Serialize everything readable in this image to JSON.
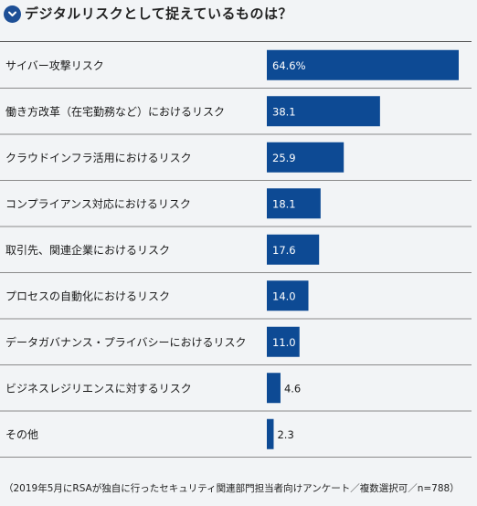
{
  "header": {
    "title": "デジタルリスクとして捉えているものは？",
    "icon": "chevron-down-icon"
  },
  "chart_data": {
    "type": "bar",
    "orientation": "horizontal",
    "title": "デジタルリスクとして捉えているものは？",
    "categories": [
      "サイバー攻撃リスク",
      "働き方改革（在宅勤務など）におけるリスク",
      "クラウドインフラ活用におけるリスク",
      "コンプライアンス対応におけるリスク",
      "取引先、関連企業におけるリスク",
      "プロセスの自動化におけるリスク",
      "データガバナンス・プライバシーにおけるリスク",
      "ビジネスレジリエンスに対するリスク",
      "その他"
    ],
    "values": [
      64.6,
      38.1,
      25.9,
      18.1,
      17.6,
      14.0,
      11.0,
      4.6,
      2.3
    ],
    "value_labels": [
      "64.6%",
      "38.1",
      "25.9",
      "18.1",
      "17.6",
      "14.0",
      "11.0",
      "4.6",
      "2.3"
    ],
    "xlim": [
      0,
      64.6
    ],
    "grid": false,
    "bar_color": "#0d4a94"
  },
  "note": "（2019年5月にRSAが独自に行ったセキュリティ関連部門担当者向けアンケート／複数選択可／n=788）"
}
